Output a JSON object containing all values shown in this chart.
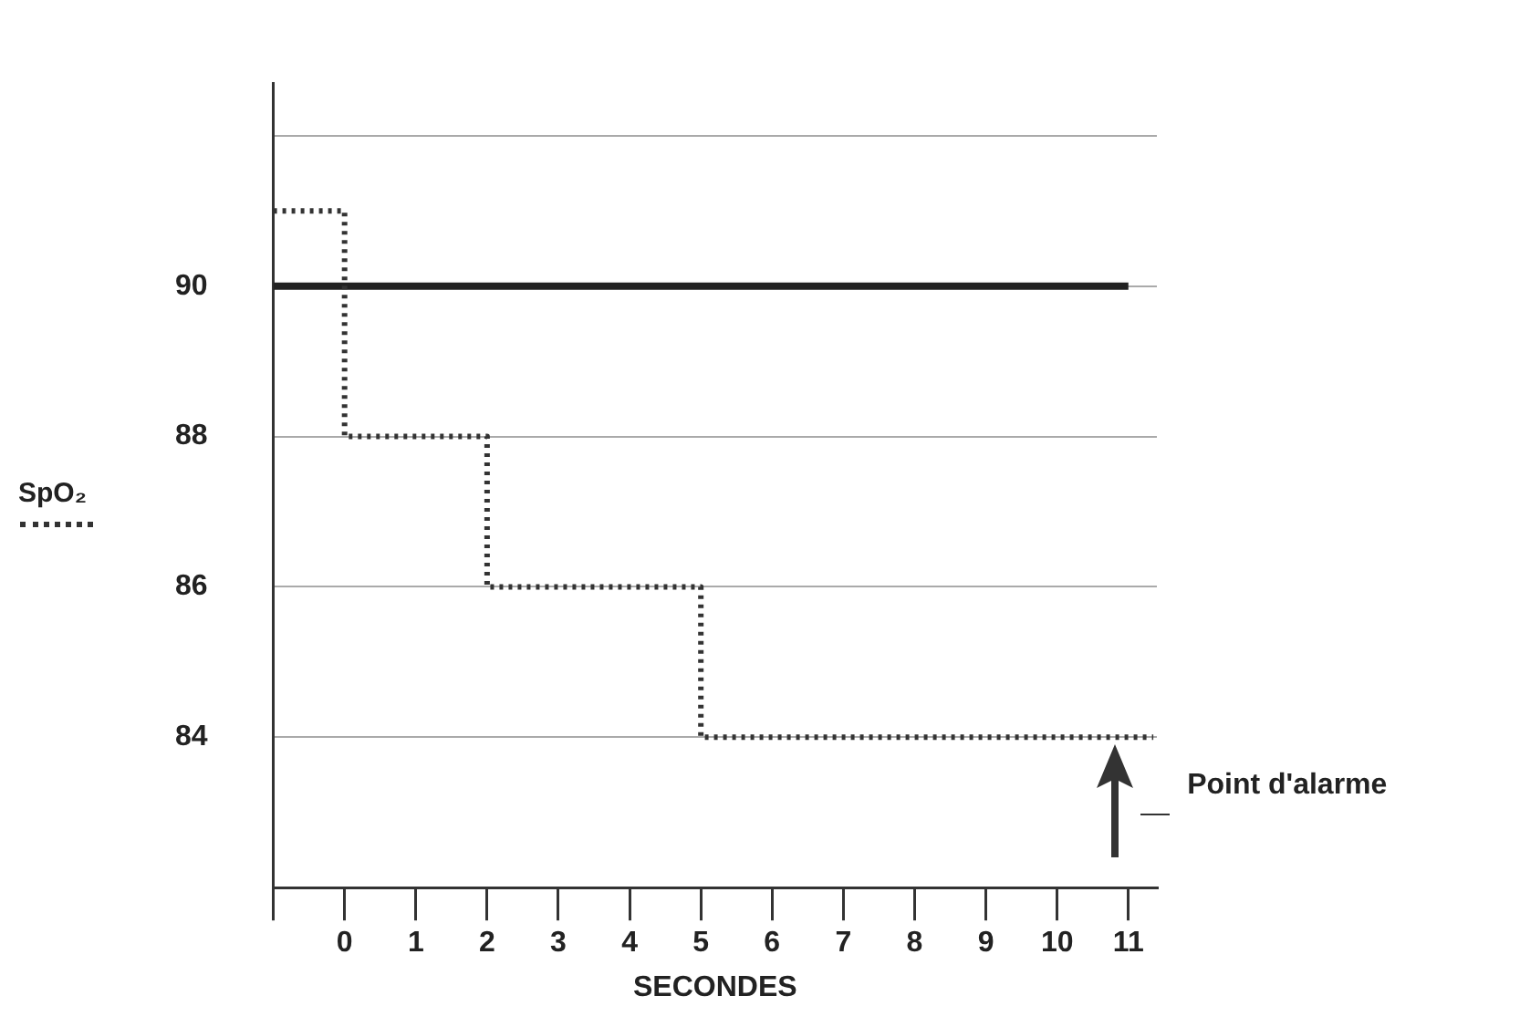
{
  "chart_data": {
    "type": "step",
    "x": [
      -1,
      0,
      2,
      5,
      11.35
    ],
    "series": [
      {
        "color": "#333333",
        "values": [
          91,
          88,
          86,
          84,
          84
        ]
      }
    ],
    "xlim": [
      -1,
      11.4
    ],
    "xticks": [
      {
        "value": -1,
        "label": null
      },
      0,
      1,
      2,
      3,
      4,
      5,
      6,
      7,
      8,
      9,
      10,
      11
    ],
    "ylim": [
      82,
      92.7
    ],
    "yticks": [
      84,
      86,
      88,
      90,
      {
        "value": 92,
        "label": null
      }
    ],
    "xlabel": "SECONDES",
    "ylabel": "SpO₂",
    "grid": "y",
    "line_style": "dotted",
    "marker": "none",
    "ref_lines": [
      {
        "axis": "y",
        "value": 90,
        "color": "#222222",
        "line_style": "solid"
      }
    ],
    "annotations": [
      {
        "text": "Point d'alarme",
        "x": 10.8,
        "y": 84
      }
    ]
  }
}
